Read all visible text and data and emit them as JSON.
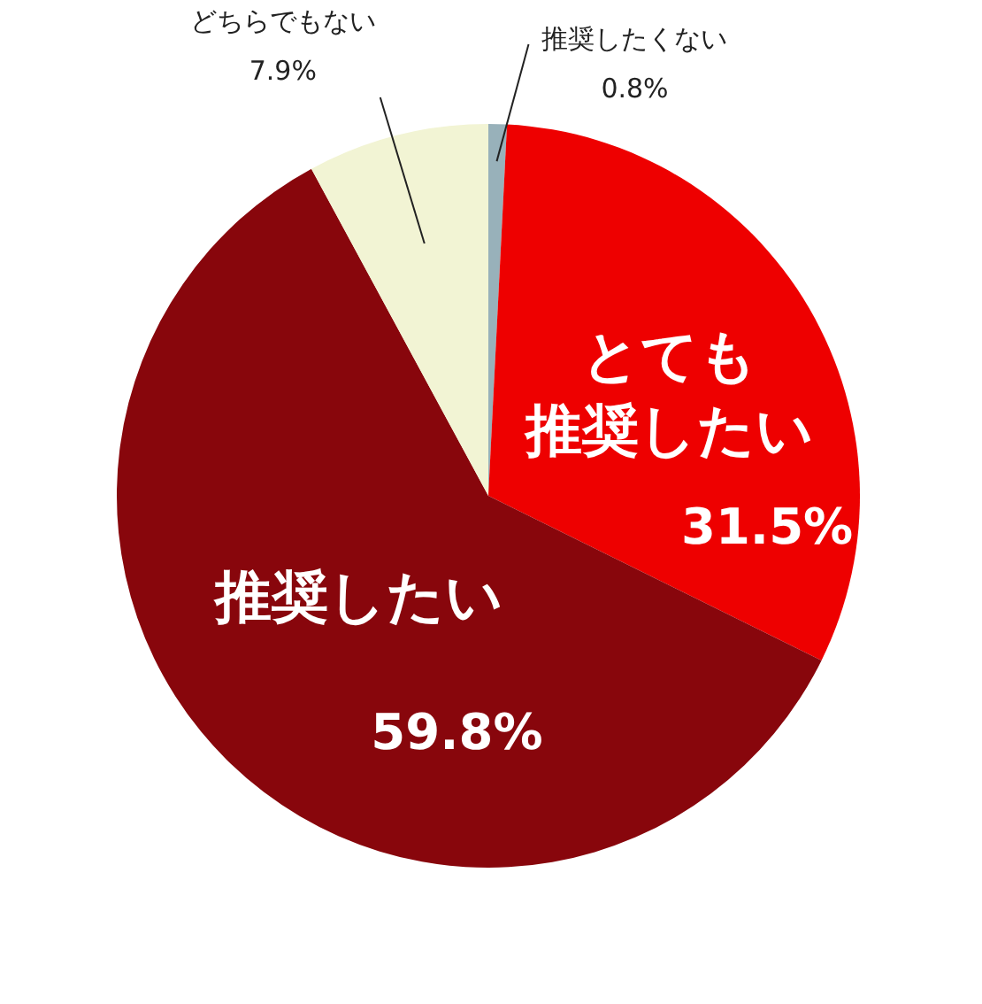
{
  "chart_data": {
    "type": "pie",
    "categories": [
      "推奨したくない",
      "とても推奨したい",
      "推奨したい",
      "どちらでもない"
    ],
    "values": [
      0.8,
      31.5,
      59.8,
      7.9
    ],
    "value_labels": [
      "0.8%",
      "31.5%",
      "59.8%",
      "7.9%"
    ],
    "colors": [
      "#98b1ba",
      "#ee0000",
      "#88060c",
      "#f2f4d4"
    ]
  }
}
